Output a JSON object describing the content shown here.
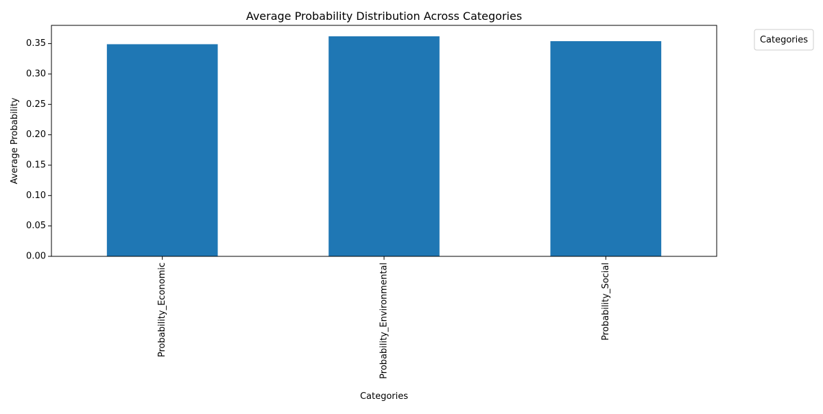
{
  "chart_data": {
    "type": "bar",
    "title": "Average Probability Distribution Across Categories",
    "xlabel": "Categories",
    "ylabel": "Average Probability",
    "categories": [
      "Probability_Economic",
      "Probability_Environmental",
      "Probability_Social"
    ],
    "values": [
      0.349,
      0.362,
      0.354
    ],
    "ylim": [
      0,
      0.38
    ],
    "yticks": [
      "0.00",
      "0.05",
      "0.10",
      "0.15",
      "0.20",
      "0.25",
      "0.30",
      "0.35"
    ],
    "bar_color": "#1f77b4",
    "grid": false,
    "legend": {
      "title": "Categories",
      "placement": "outside-top-right"
    }
  }
}
